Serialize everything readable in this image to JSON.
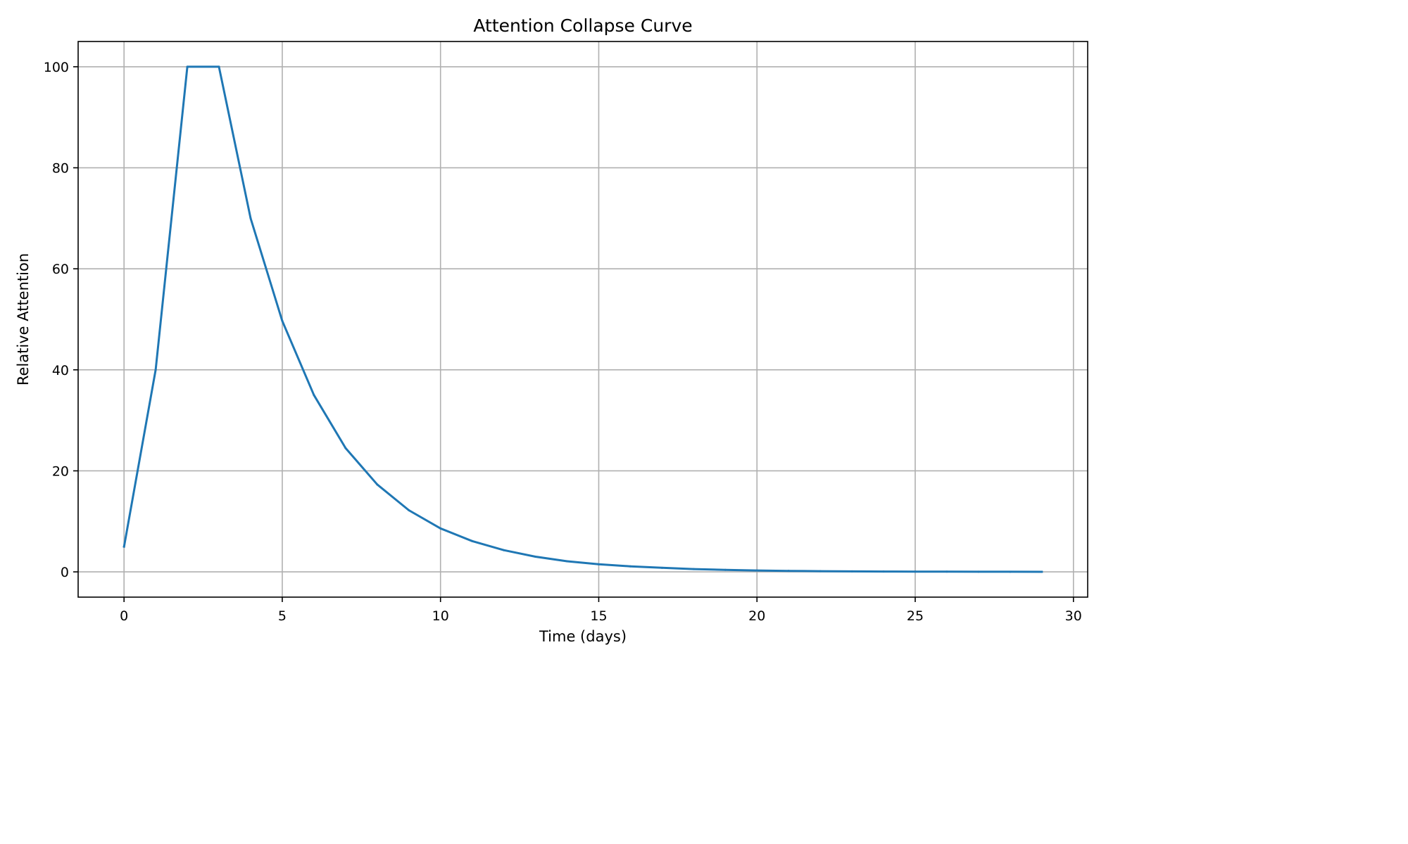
{
  "chart_data": {
    "type": "line",
    "title": "Attention Collapse Curve",
    "xlabel": "Time (days)",
    "ylabel": "Relative Attention",
    "xlim": [
      -1.45,
      30.45
    ],
    "ylim": [
      -5,
      105
    ],
    "xticks": [
      0,
      5,
      10,
      15,
      20,
      25,
      30
    ],
    "yticks": [
      0,
      20,
      40,
      60,
      80,
      100
    ],
    "grid": true,
    "series": [
      {
        "color": "#1f77b4",
        "x": [
          0,
          1,
          2,
          3,
          4,
          5,
          6,
          7,
          8,
          9,
          10,
          11,
          12,
          13,
          14,
          15,
          16,
          17,
          18,
          19,
          20,
          21,
          22,
          23,
          24,
          25,
          26,
          27,
          28,
          29
        ],
        "y": [
          5,
          40,
          100,
          100,
          70,
          49.7,
          35,
          24.5,
          17.3,
          12.2,
          8.6,
          6.1,
          4.3,
          3.0,
          2.1,
          1.5,
          1.1,
          0.8,
          0.55,
          0.4,
          0.28,
          0.2,
          0.14,
          0.1,
          0.07,
          0.05,
          0.04,
          0.03,
          0.02,
          0.01
        ]
      }
    ]
  }
}
